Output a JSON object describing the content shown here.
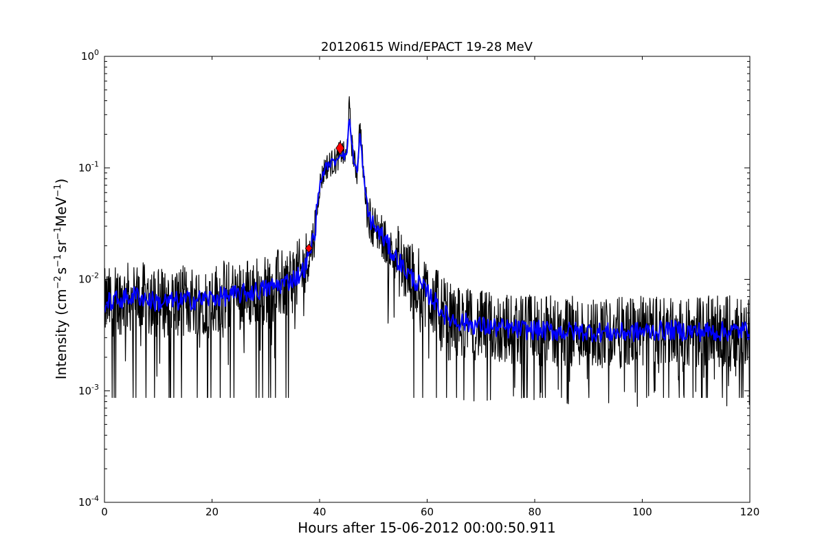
{
  "chart_data": {
    "type": "line",
    "title": "20120615 Wind/EPACT 19-28 MeV",
    "xlabel": "Hours after 15-06-2012 00:00:50.911",
    "ylabel": "Intensity (cm-2 s-1 sr-1 MeV-1)",
    "ylabel_parts": {
      "pre": "Intensity (cm",
      "sup1": "−2",
      "s": "s",
      "sup2": "−1",
      "sr": "sr",
      "sup3": "−1",
      "mev": "MeV",
      "sup4": "−1",
      "post": ")"
    },
    "y_scale": "log",
    "xlim": [
      0,
      120
    ],
    "ylim": [
      0.0001,
      1
    ],
    "x_ticks": [
      0,
      20,
      40,
      60,
      80,
      100,
      120
    ],
    "x_tick_labels": [
      "0",
      "20",
      "40",
      "60",
      "80",
      "100",
      "120"
    ],
    "y_ticks": [
      {
        "value": 1,
        "base": "10",
        "exp": "0"
      },
      {
        "value": 0.1,
        "base": "10",
        "exp": "-1"
      },
      {
        "value": 0.01,
        "base": "10",
        "exp": "-2"
      },
      {
        "value": 0.001,
        "base": "10",
        "exp": "-3"
      },
      {
        "value": 0.0001,
        "base": "10",
        "exp": "-4"
      }
    ],
    "grid": false,
    "series": [
      {
        "color": "#000000",
        "style": "raw-noisy",
        "x": [
          0,
          2,
          4,
          6,
          8,
          10,
          12,
          14,
          16,
          18,
          20,
          22,
          24,
          26,
          28,
          30,
          32,
          34,
          36,
          37,
          38,
          39,
          40,
          41,
          42,
          43,
          44,
          44.5,
          45,
          45.5,
          46,
          46.5,
          47,
          47.5,
          48,
          48.5,
          49,
          50,
          51,
          52,
          53,
          54,
          55,
          56,
          57,
          58,
          59,
          60,
          61,
          62,
          63,
          64,
          66,
          68,
          70,
          75,
          80,
          85,
          90,
          95,
          100,
          105,
          110,
          115,
          120
        ],
        "values": [
          0.006,
          0.0065,
          0.0068,
          0.0072,
          0.0066,
          0.0062,
          0.0063,
          0.0064,
          0.0065,
          0.0066,
          0.0068,
          0.007,
          0.0072,
          0.0075,
          0.0078,
          0.0082,
          0.0088,
          0.0095,
          0.0108,
          0.012,
          0.016,
          0.025,
          0.07,
          0.1,
          0.11,
          0.115,
          0.14,
          0.13,
          0.12,
          0.35,
          0.16,
          0.11,
          0.09,
          0.25,
          0.11,
          0.06,
          0.04,
          0.03,
          0.027,
          0.023,
          0.019,
          0.016,
          0.014,
          0.012,
          0.0105,
          0.0095,
          0.0085,
          0.0075,
          0.0068,
          0.0058,
          0.005,
          0.0045,
          0.0042,
          0.004,
          0.0038,
          0.0036,
          0.0035,
          0.0034,
          0.0034,
          0.0033,
          0.0034,
          0.0035,
          0.0034,
          0.0034,
          0.0035
        ]
      },
      {
        "color": "#0000ff",
        "style": "smoothed",
        "x": [
          0,
          2,
          4,
          6,
          8,
          10,
          12,
          14,
          16,
          18,
          20,
          22,
          24,
          26,
          28,
          30,
          32,
          34,
          36,
          37,
          38,
          39,
          40,
          41,
          42,
          43,
          44,
          44.5,
          45,
          45.5,
          46,
          46.5,
          47,
          47.5,
          48,
          48.5,
          49,
          50,
          51,
          52,
          53,
          54,
          55,
          56,
          57,
          58,
          59,
          60,
          61,
          62,
          63,
          64,
          66,
          68,
          70,
          75,
          80,
          85,
          90,
          95,
          100,
          105,
          110,
          115,
          120
        ],
        "values": [
          0.006,
          0.0065,
          0.0068,
          0.0072,
          0.0066,
          0.0062,
          0.0063,
          0.0064,
          0.0065,
          0.0066,
          0.0068,
          0.007,
          0.0072,
          0.0075,
          0.0078,
          0.0082,
          0.0088,
          0.0095,
          0.0108,
          0.012,
          0.016,
          0.025,
          0.07,
          0.1,
          0.11,
          0.115,
          0.14,
          0.13,
          0.12,
          0.3,
          0.16,
          0.11,
          0.09,
          0.2,
          0.11,
          0.06,
          0.04,
          0.03,
          0.027,
          0.023,
          0.019,
          0.016,
          0.014,
          0.012,
          0.0105,
          0.0095,
          0.0085,
          0.0075,
          0.0068,
          0.0058,
          0.005,
          0.0045,
          0.0042,
          0.004,
          0.0038,
          0.0036,
          0.0035,
          0.0034,
          0.0034,
          0.0033,
          0.0034,
          0.0035,
          0.0034,
          0.0034,
          0.0035
        ]
      }
    ],
    "markers": [
      {
        "x": 38.0,
        "y": 0.019,
        "shape": "diamond",
        "color": "#ff0000",
        "size": "small"
      },
      {
        "x": 43.8,
        "y": 0.15,
        "shape": "diamond",
        "color": "#ff0000",
        "size": "large"
      }
    ]
  }
}
